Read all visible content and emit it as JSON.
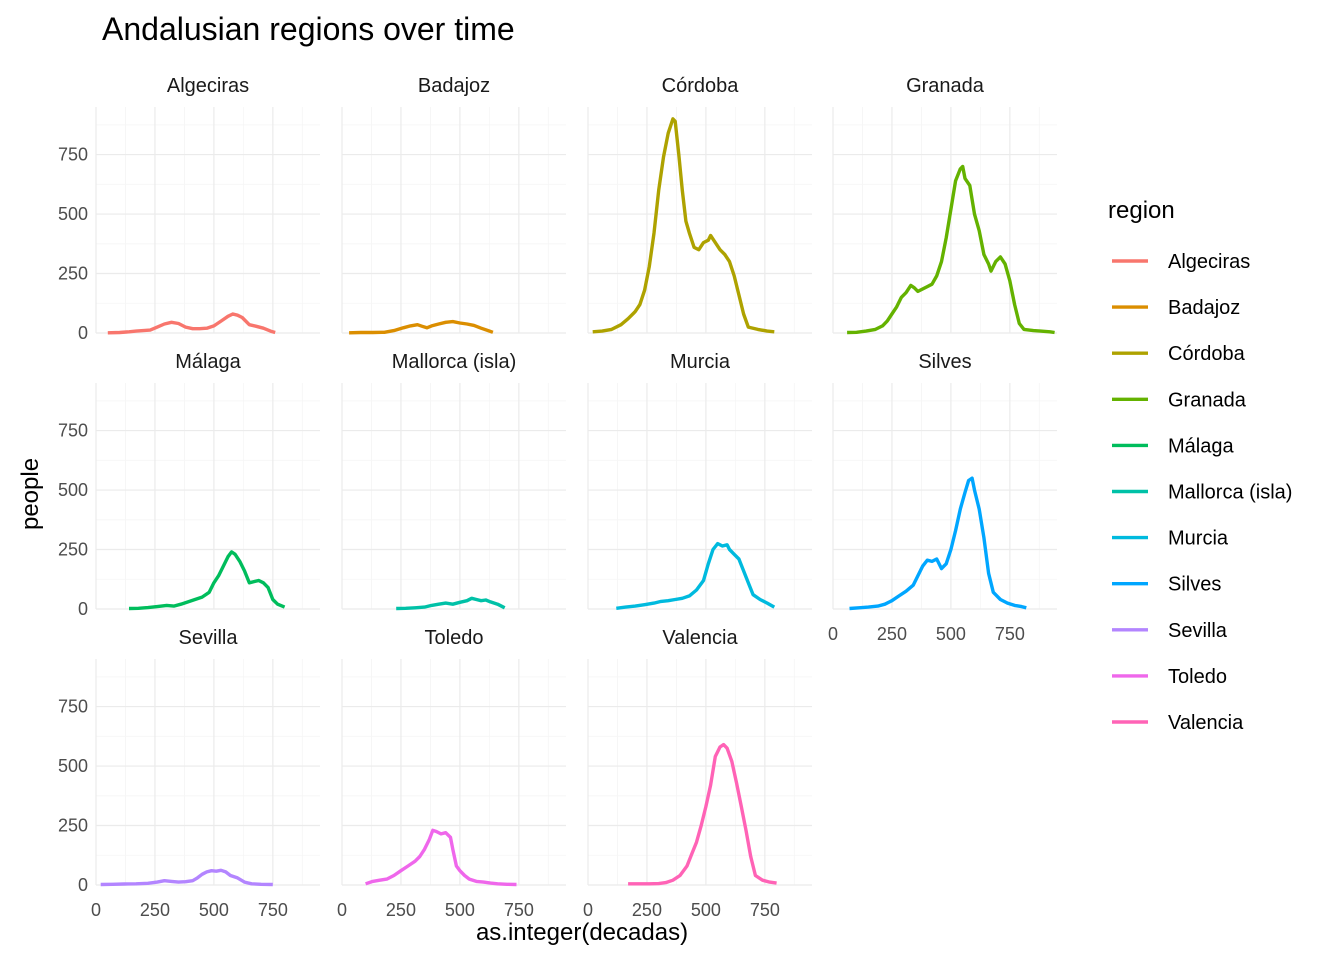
{
  "chart_data": {
    "type": "line",
    "title": "Andalusian regions over time",
    "xlabel": "as.integer(decadas)",
    "ylabel": "people",
    "xlim": [
      0,
      950
    ],
    "ylim": [
      0,
      950
    ],
    "x_ticks": [
      0,
      250,
      500,
      750
    ],
    "y_ticks": [
      0,
      250,
      500,
      750
    ],
    "x_tick_labels": [
      "0",
      "250",
      "500",
      "750"
    ],
    "y_tick_labels": [
      "0",
      "250",
      "500",
      "750"
    ],
    "facet_cols": 4,
    "grid": true,
    "legend": {
      "title": "region",
      "position": "right"
    },
    "series": [
      {
        "name": "Algeciras",
        "color": "#F8766D",
        "points": [
          [
            50,
            1
          ],
          [
            100,
            2
          ],
          [
            140,
            5
          ],
          [
            170,
            8
          ],
          [
            200,
            10
          ],
          [
            230,
            12
          ],
          [
            260,
            25
          ],
          [
            290,
            38
          ],
          [
            320,
            45
          ],
          [
            350,
            40
          ],
          [
            380,
            25
          ],
          [
            410,
            18
          ],
          [
            440,
            18
          ],
          [
            470,
            20
          ],
          [
            500,
            30
          ],
          [
            530,
            50
          ],
          [
            560,
            70
          ],
          [
            580,
            80
          ],
          [
            600,
            75
          ],
          [
            620,
            65
          ],
          [
            650,
            35
          ],
          [
            680,
            28
          ],
          [
            710,
            20
          ],
          [
            740,
            8
          ],
          [
            760,
            2
          ]
        ]
      },
      {
        "name": "Badajoz",
        "color": "#DB8E00",
        "points": [
          [
            30,
            1
          ],
          [
            80,
            2
          ],
          [
            130,
            2
          ],
          [
            180,
            3
          ],
          [
            220,
            10
          ],
          [
            260,
            22
          ],
          [
            290,
            30
          ],
          [
            320,
            35
          ],
          [
            340,
            28
          ],
          [
            360,
            22
          ],
          [
            380,
            30
          ],
          [
            410,
            38
          ],
          [
            440,
            45
          ],
          [
            470,
            48
          ],
          [
            500,
            42
          ],
          [
            530,
            38
          ],
          [
            560,
            32
          ],
          [
            590,
            20
          ],
          [
            620,
            10
          ],
          [
            640,
            3
          ]
        ]
      },
      {
        "name": "Córdoba",
        "color": "#AEA200",
        "points": [
          [
            20,
            5
          ],
          [
            60,
            8
          ],
          [
            100,
            15
          ],
          [
            140,
            35
          ],
          [
            170,
            60
          ],
          [
            200,
            90
          ],
          [
            220,
            120
          ],
          [
            240,
            180
          ],
          [
            260,
            280
          ],
          [
            280,
            420
          ],
          [
            300,
            600
          ],
          [
            320,
            740
          ],
          [
            340,
            840
          ],
          [
            360,
            900
          ],
          [
            370,
            890
          ],
          [
            385,
            750
          ],
          [
            400,
            600
          ],
          [
            415,
            470
          ],
          [
            430,
            420
          ],
          [
            450,
            360
          ],
          [
            470,
            350
          ],
          [
            490,
            380
          ],
          [
            510,
            390
          ],
          [
            520,
            410
          ],
          [
            540,
            380
          ],
          [
            560,
            350
          ],
          [
            580,
            330
          ],
          [
            600,
            300
          ],
          [
            620,
            240
          ],
          [
            640,
            160
          ],
          [
            660,
            80
          ],
          [
            680,
            25
          ],
          [
            720,
            15
          ],
          [
            760,
            8
          ],
          [
            790,
            5
          ]
        ]
      },
      {
        "name": "Granada",
        "color": "#64B200",
        "points": [
          [
            60,
            2
          ],
          [
            100,
            3
          ],
          [
            140,
            8
          ],
          [
            180,
            15
          ],
          [
            210,
            30
          ],
          [
            230,
            50
          ],
          [
            250,
            80
          ],
          [
            270,
            110
          ],
          [
            290,
            150
          ],
          [
            310,
            170
          ],
          [
            330,
            200
          ],
          [
            345,
            190
          ],
          [
            360,
            175
          ],
          [
            380,
            185
          ],
          [
            400,
            195
          ],
          [
            420,
            205
          ],
          [
            440,
            240
          ],
          [
            460,
            300
          ],
          [
            480,
            400
          ],
          [
            500,
            520
          ],
          [
            520,
            640
          ],
          [
            540,
            690
          ],
          [
            550,
            700
          ],
          [
            560,
            650
          ],
          [
            580,
            620
          ],
          [
            600,
            500
          ],
          [
            620,
            430
          ],
          [
            640,
            330
          ],
          [
            660,
            290
          ],
          [
            670,
            260
          ],
          [
            690,
            300
          ],
          [
            710,
            320
          ],
          [
            730,
            290
          ],
          [
            750,
            220
          ],
          [
            770,
            120
          ],
          [
            790,
            40
          ],
          [
            810,
            15
          ],
          [
            850,
            10
          ],
          [
            880,
            8
          ],
          [
            920,
            5
          ],
          [
            940,
            2
          ]
        ]
      },
      {
        "name": "Málaga",
        "color": "#00BD5C",
        "points": [
          [
            140,
            2
          ],
          [
            180,
            3
          ],
          [
            220,
            6
          ],
          [
            260,
            10
          ],
          [
            300,
            15
          ],
          [
            330,
            12
          ],
          [
            360,
            20
          ],
          [
            390,
            30
          ],
          [
            420,
            40
          ],
          [
            450,
            50
          ],
          [
            480,
            70
          ],
          [
            500,
            110
          ],
          [
            520,
            140
          ],
          [
            540,
            180
          ],
          [
            560,
            220
          ],
          [
            575,
            240
          ],
          [
            590,
            230
          ],
          [
            610,
            200
          ],
          [
            630,
            160
          ],
          [
            650,
            110
          ],
          [
            670,
            115
          ],
          [
            690,
            120
          ],
          [
            710,
            110
          ],
          [
            730,
            90
          ],
          [
            750,
            40
          ],
          [
            770,
            20
          ],
          [
            800,
            8
          ]
        ]
      },
      {
        "name": "Mallorca (isla)",
        "color": "#00C1A7",
        "points": [
          [
            230,
            2
          ],
          [
            270,
            3
          ],
          [
            310,
            5
          ],
          [
            350,
            8
          ],
          [
            380,
            15
          ],
          [
            410,
            20
          ],
          [
            440,
            25
          ],
          [
            470,
            20
          ],
          [
            500,
            28
          ],
          [
            530,
            35
          ],
          [
            550,
            45
          ],
          [
            570,
            40
          ],
          [
            590,
            35
          ],
          [
            610,
            38
          ],
          [
            630,
            30
          ],
          [
            660,
            20
          ],
          [
            690,
            5
          ]
        ]
      },
      {
        "name": "Murcia",
        "color": "#00BADE",
        "points": [
          [
            120,
            3
          ],
          [
            160,
            8
          ],
          [
            200,
            12
          ],
          [
            240,
            18
          ],
          [
            280,
            25
          ],
          [
            310,
            32
          ],
          [
            340,
            35
          ],
          [
            370,
            40
          ],
          [
            400,
            45
          ],
          [
            430,
            55
          ],
          [
            460,
            80
          ],
          [
            490,
            120
          ],
          [
            510,
            190
          ],
          [
            530,
            250
          ],
          [
            550,
            275
          ],
          [
            570,
            265
          ],
          [
            590,
            270
          ],
          [
            600,
            250
          ],
          [
            620,
            230
          ],
          [
            640,
            210
          ],
          [
            660,
            160
          ],
          [
            680,
            110
          ],
          [
            700,
            60
          ],
          [
            730,
            40
          ],
          [
            760,
            25
          ],
          [
            790,
            8
          ]
        ]
      },
      {
        "name": "Silves",
        "color": "#00A6FF",
        "points": [
          [
            70,
            2
          ],
          [
            110,
            5
          ],
          [
            150,
            8
          ],
          [
            190,
            12
          ],
          [
            220,
            20
          ],
          [
            250,
            35
          ],
          [
            280,
            55
          ],
          [
            310,
            75
          ],
          [
            340,
            100
          ],
          [
            360,
            140
          ],
          [
            380,
            180
          ],
          [
            400,
            205
          ],
          [
            420,
            200
          ],
          [
            440,
            210
          ],
          [
            460,
            170
          ],
          [
            480,
            190
          ],
          [
            500,
            250
          ],
          [
            520,
            330
          ],
          [
            540,
            420
          ],
          [
            560,
            490
          ],
          [
            575,
            540
          ],
          [
            590,
            550
          ],
          [
            600,
            500
          ],
          [
            620,
            420
          ],
          [
            640,
            300
          ],
          [
            660,
            150
          ],
          [
            680,
            70
          ],
          [
            710,
            40
          ],
          [
            740,
            25
          ],
          [
            770,
            15
          ],
          [
            800,
            10
          ],
          [
            820,
            5
          ]
        ]
      },
      {
        "name": "Sevilla",
        "color": "#B385FF",
        "points": [
          [
            20,
            2
          ],
          [
            70,
            3
          ],
          [
            120,
            4
          ],
          [
            170,
            5
          ],
          [
            220,
            7
          ],
          [
            260,
            12
          ],
          [
            290,
            18
          ],
          [
            320,
            15
          ],
          [
            350,
            12
          ],
          [
            380,
            14
          ],
          [
            410,
            18
          ],
          [
            430,
            30
          ],
          [
            450,
            45
          ],
          [
            470,
            55
          ],
          [
            490,
            60
          ],
          [
            510,
            58
          ],
          [
            530,
            62
          ],
          [
            550,
            55
          ],
          [
            570,
            40
          ],
          [
            600,
            30
          ],
          [
            630,
            12
          ],
          [
            660,
            5
          ],
          [
            700,
            3
          ],
          [
            750,
            2
          ]
        ]
      },
      {
        "name": "Toledo",
        "color": "#EF67EB",
        "points": [
          [
            100,
            5
          ],
          [
            130,
            15
          ],
          [
            160,
            20
          ],
          [
            190,
            25
          ],
          [
            220,
            40
          ],
          [
            250,
            60
          ],
          [
            280,
            80
          ],
          [
            310,
            100
          ],
          [
            330,
            120
          ],
          [
            350,
            150
          ],
          [
            370,
            190
          ],
          [
            385,
            230
          ],
          [
            400,
            225
          ],
          [
            420,
            215
          ],
          [
            440,
            220
          ],
          [
            460,
            200
          ],
          [
            470,
            150
          ],
          [
            485,
            80
          ],
          [
            500,
            60
          ],
          [
            520,
            40
          ],
          [
            540,
            25
          ],
          [
            570,
            15
          ],
          [
            600,
            12
          ],
          [
            630,
            8
          ],
          [
            660,
            5
          ],
          [
            700,
            3
          ],
          [
            740,
            2
          ]
        ]
      },
      {
        "name": "Valencia",
        "color": "#FF63B6",
        "points": [
          [
            170,
            5
          ],
          [
            210,
            5
          ],
          [
            260,
            5
          ],
          [
            300,
            6
          ],
          [
            330,
            10
          ],
          [
            360,
            20
          ],
          [
            390,
            40
          ],
          [
            420,
            80
          ],
          [
            440,
            130
          ],
          [
            460,
            180
          ],
          [
            480,
            250
          ],
          [
            500,
            330
          ],
          [
            520,
            420
          ],
          [
            540,
            540
          ],
          [
            560,
            580
          ],
          [
            575,
            590
          ],
          [
            590,
            575
          ],
          [
            610,
            520
          ],
          [
            630,
            430
          ],
          [
            650,
            330
          ],
          [
            670,
            230
          ],
          [
            690,
            120
          ],
          [
            710,
            40
          ],
          [
            740,
            20
          ],
          [
            770,
            12
          ],
          [
            800,
            8
          ]
        ]
      }
    ]
  }
}
